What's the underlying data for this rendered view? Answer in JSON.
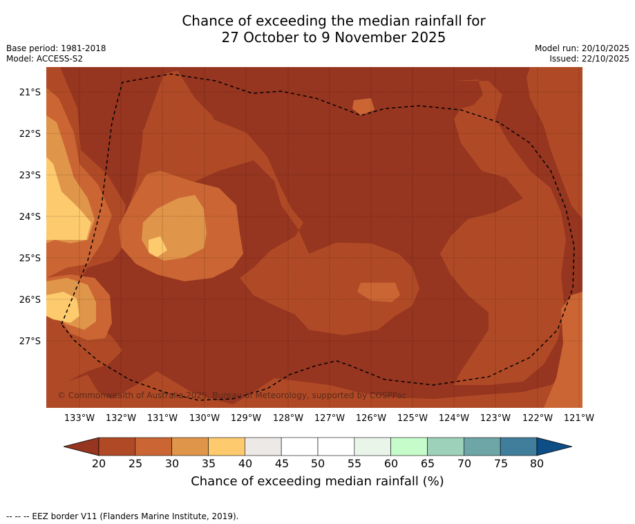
{
  "title_line1": "Chance of exceeding the median rainfall for",
  "title_line2": "27 October to 9 November 2025",
  "meta_left": {
    "base_period": "Base period: 1981-2018",
    "model": "Model: ACCESS-S2"
  },
  "meta_right": {
    "model_run": "Model run: 20/10/2025",
    "issued": "Issued: 22/10/2025"
  },
  "map": {
    "copyright": "© Commonwealth of Australia 2025, Bureau of Meteorology, supported by COSPPac",
    "lat_labels": [
      "21°S",
      "22°S",
      "23°S",
      "24°S",
      "25°S",
      "26°S",
      "27°S"
    ],
    "lon_labels": [
      "133°W",
      "132°W",
      "131°W",
      "130°W",
      "129°W",
      "128°W",
      "127°W",
      "126°W",
      "125°W",
      "124°W",
      "123°W",
      "122°W",
      "121°W"
    ],
    "band_colors": {
      "below_20": "#963520",
      "20_25": "#b04a26",
      "25_30": "#cb6634",
      "30_35": "#e0964a",
      "35_40": "#fdcb6e"
    }
  },
  "colorbar": {
    "ticks": [
      "20",
      "25",
      "30",
      "35",
      "40",
      "45",
      "50",
      "55",
      "60",
      "65",
      "70",
      "75",
      "80"
    ],
    "colors": [
      "#b04a26",
      "#cb6634",
      "#e0964a",
      "#fdcb6e",
      "#ece9e6",
      "#ffffff",
      "#ffffff",
      "#eaf5ea",
      "#c6fcc9",
      "#9ed1b9",
      "#6ea6a7",
      "#417e9b"
    ],
    "under_color": "#963520",
    "over_color": "#0e4e86",
    "label": "Chance of exceeding median rainfall (%)"
  },
  "footnote": "--  --  -- EEZ border V11 (Flanders Marine Institute, 2019)."
}
